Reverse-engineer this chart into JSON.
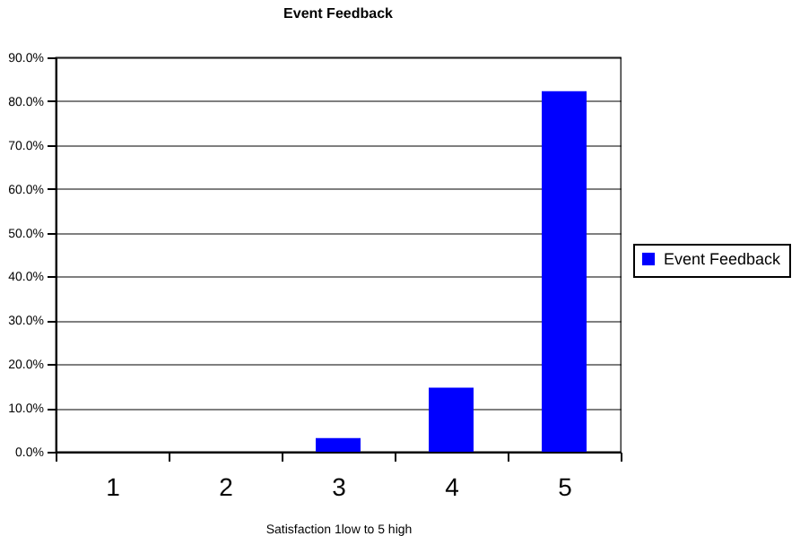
{
  "chart_data": {
    "type": "bar",
    "title": "Event Feedback",
    "xlabel": "Satisfaction 1low to 5 high",
    "categories": [
      "1",
      "2",
      "3",
      "4",
      "5"
    ],
    "series": [
      {
        "name": "Event Feedback",
        "color": "#0000ff",
        "values": [
          0,
          0,
          3.1,
          14.6,
          82.3
        ]
      }
    ],
    "ylim": [
      0,
      90
    ],
    "yticks": [
      {
        "value": 0,
        "label": "0.0%"
      },
      {
        "value": 10,
        "label": "10.0%"
      },
      {
        "value": 20,
        "label": "20.0%"
      },
      {
        "value": 30,
        "label": "30.0%"
      },
      {
        "value": 40,
        "label": "40.0%"
      },
      {
        "value": 50,
        "label": "50.0%"
      },
      {
        "value": 60,
        "label": "60.0%"
      },
      {
        "value": 70,
        "label": "70.0%"
      },
      {
        "value": 80,
        "label": "80.0%"
      },
      {
        "value": 90,
        "label": "90.0%"
      }
    ],
    "grid": "y",
    "legend": "right"
  }
}
